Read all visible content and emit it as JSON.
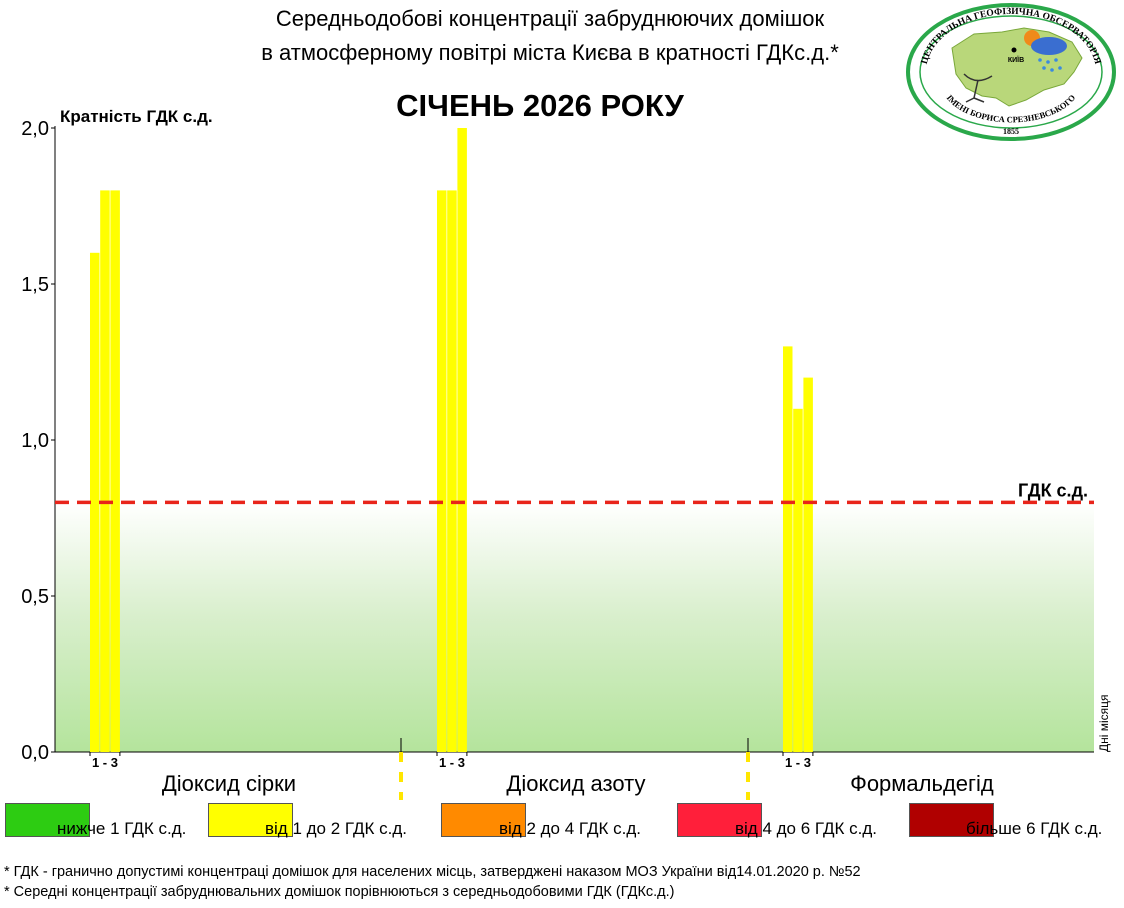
{
  "header": {
    "title_line1": "Середньодобові концентрації забруднюючих домішок",
    "title_line2": "в атмосферному повітрі міста Києва в кратності ГДКс.д.*",
    "period": "СІЧЕНЬ 2026 РОКУ"
  },
  "logo": {
    "arc_text": "ЦЕНТРАЛЬНА ГЕОФІЗИЧНА ОБСЕРВАТОРІЯ",
    "bottom_text": "ІМЕНІ БОРИСА СРЕЗНЕВСЬКОГО",
    "year": "1855",
    "city": "КИЇВ",
    "icon": "observatory-map-icon"
  },
  "chart_data": {
    "type": "bar",
    "ylabel": "Кратність ГДК с.д.",
    "xlabel": "Дні місяця",
    "ylim": [
      0,
      2.0
    ],
    "yticks": [
      0.0,
      0.5,
      1.0,
      1.5,
      2.0
    ],
    "ytick_labels": [
      "0,0",
      "0,5",
      "1,0",
      "1,5",
      "2,0"
    ],
    "threshold": {
      "value": 0.8,
      "label": "ГДК с.д.",
      "color": "#e8241a"
    },
    "bar_color": "#ffff00",
    "groups": [
      {
        "name": "Діоксид сірки",
        "days": [
          1,
          2,
          3
        ],
        "values": [
          1.6,
          1.8,
          1.8
        ],
        "day_label": "1 - 3"
      },
      {
        "name": "Діоксид азоту",
        "days": [
          1,
          2,
          3
        ],
        "values": [
          1.8,
          1.8,
          2.0
        ],
        "day_label": "1 - 3"
      },
      {
        "name": "Формальдегід",
        "days": [
          1,
          2,
          3
        ],
        "values": [
          1.3,
          1.1,
          1.2
        ],
        "day_label": "1 - 3"
      }
    ]
  },
  "legend": [
    {
      "label": "нижче 1 ГДК с.д.",
      "color": "#2dcc12"
    },
    {
      "label": "від 1 до 2 ГДК с.д.",
      "color": "#ffff00"
    },
    {
      "label": "від 2 до 4 ГДК с.д.",
      "color": "#ff8a00"
    },
    {
      "label": "від 4 до 6 ГДК с.д.",
      "color": "#ff1f3a"
    },
    {
      "label": "більше 6 ГДК с.д.",
      "color": "#b00000"
    }
  ],
  "footnotes": [
    "* ГДК - гранично допустимі концентраці домішок для населених місць, затверджені наказом МОЗ України від14.01.2020 р. №52",
    "* Середні концентрації забруднювальних домішок порівнюються з середньодобовими  ГДК (ГДКс.д.)"
  ]
}
